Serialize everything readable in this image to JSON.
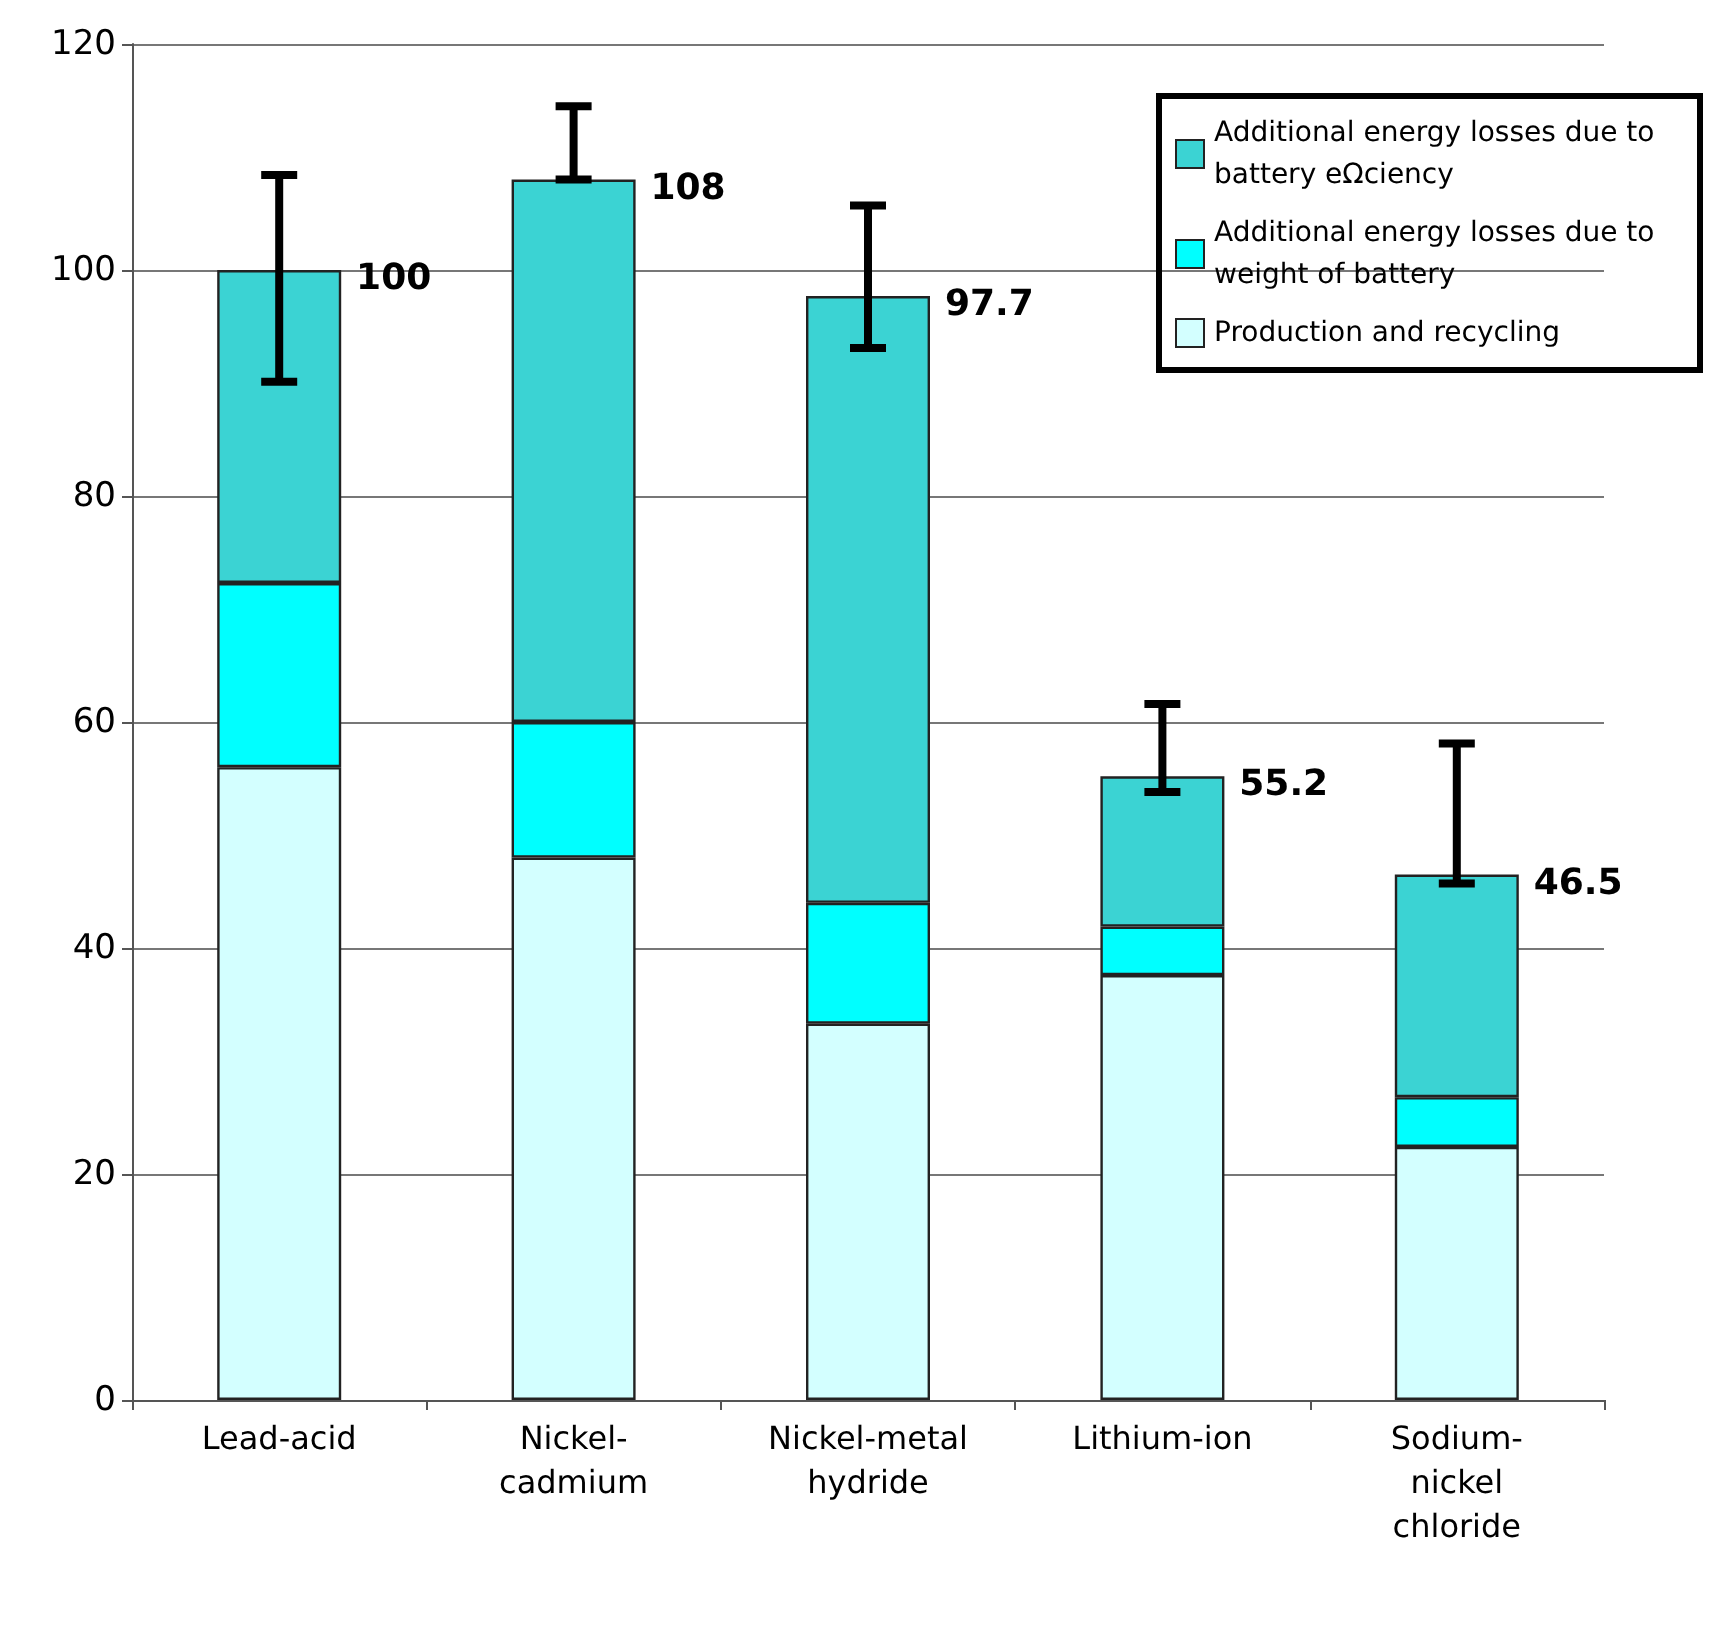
{
  "chart_data": {
    "type": "bar",
    "stacked": true,
    "categories": [
      "Lead-acid",
      "Nickel-cadmium",
      "Nickel-metal hydride",
      "Lithium-ion",
      "Sodium-nickel chloride"
    ],
    "series": [
      {
        "name": "Production and recycling",
        "color": "#d3ffff",
        "values": [
          56,
          48,
          33.3,
          37.6,
          22.4
        ]
      },
      {
        "name": "Additional energy losses due to weight of battery",
        "color": "#00ffff",
        "values": [
          16.3,
          12,
          10.7,
          4.3,
          4.4
        ]
      },
      {
        "name": "Additional energy losses due to battery eΩciency",
        "color": "#3bd3d3",
        "values": [
          27.7,
          48,
          53.7,
          13.3,
          19.7
        ],
        "errors": [
          [
            90.1,
            108.4
          ],
          [
            108,
            114.5
          ],
          [
            93.1,
            105.7
          ],
          [
            53.8,
            61.6
          ],
          [
            45.7,
            58.1
          ]
        ]
      }
    ],
    "totals": [
      "100",
      "108",
      "97.7",
      "55.2",
      "46.5"
    ],
    "ylim": [
      0,
      120
    ],
    "yticks": [
      0,
      20,
      40,
      60,
      80,
      100,
      120
    ],
    "grid": "y",
    "legend": "top right"
  }
}
